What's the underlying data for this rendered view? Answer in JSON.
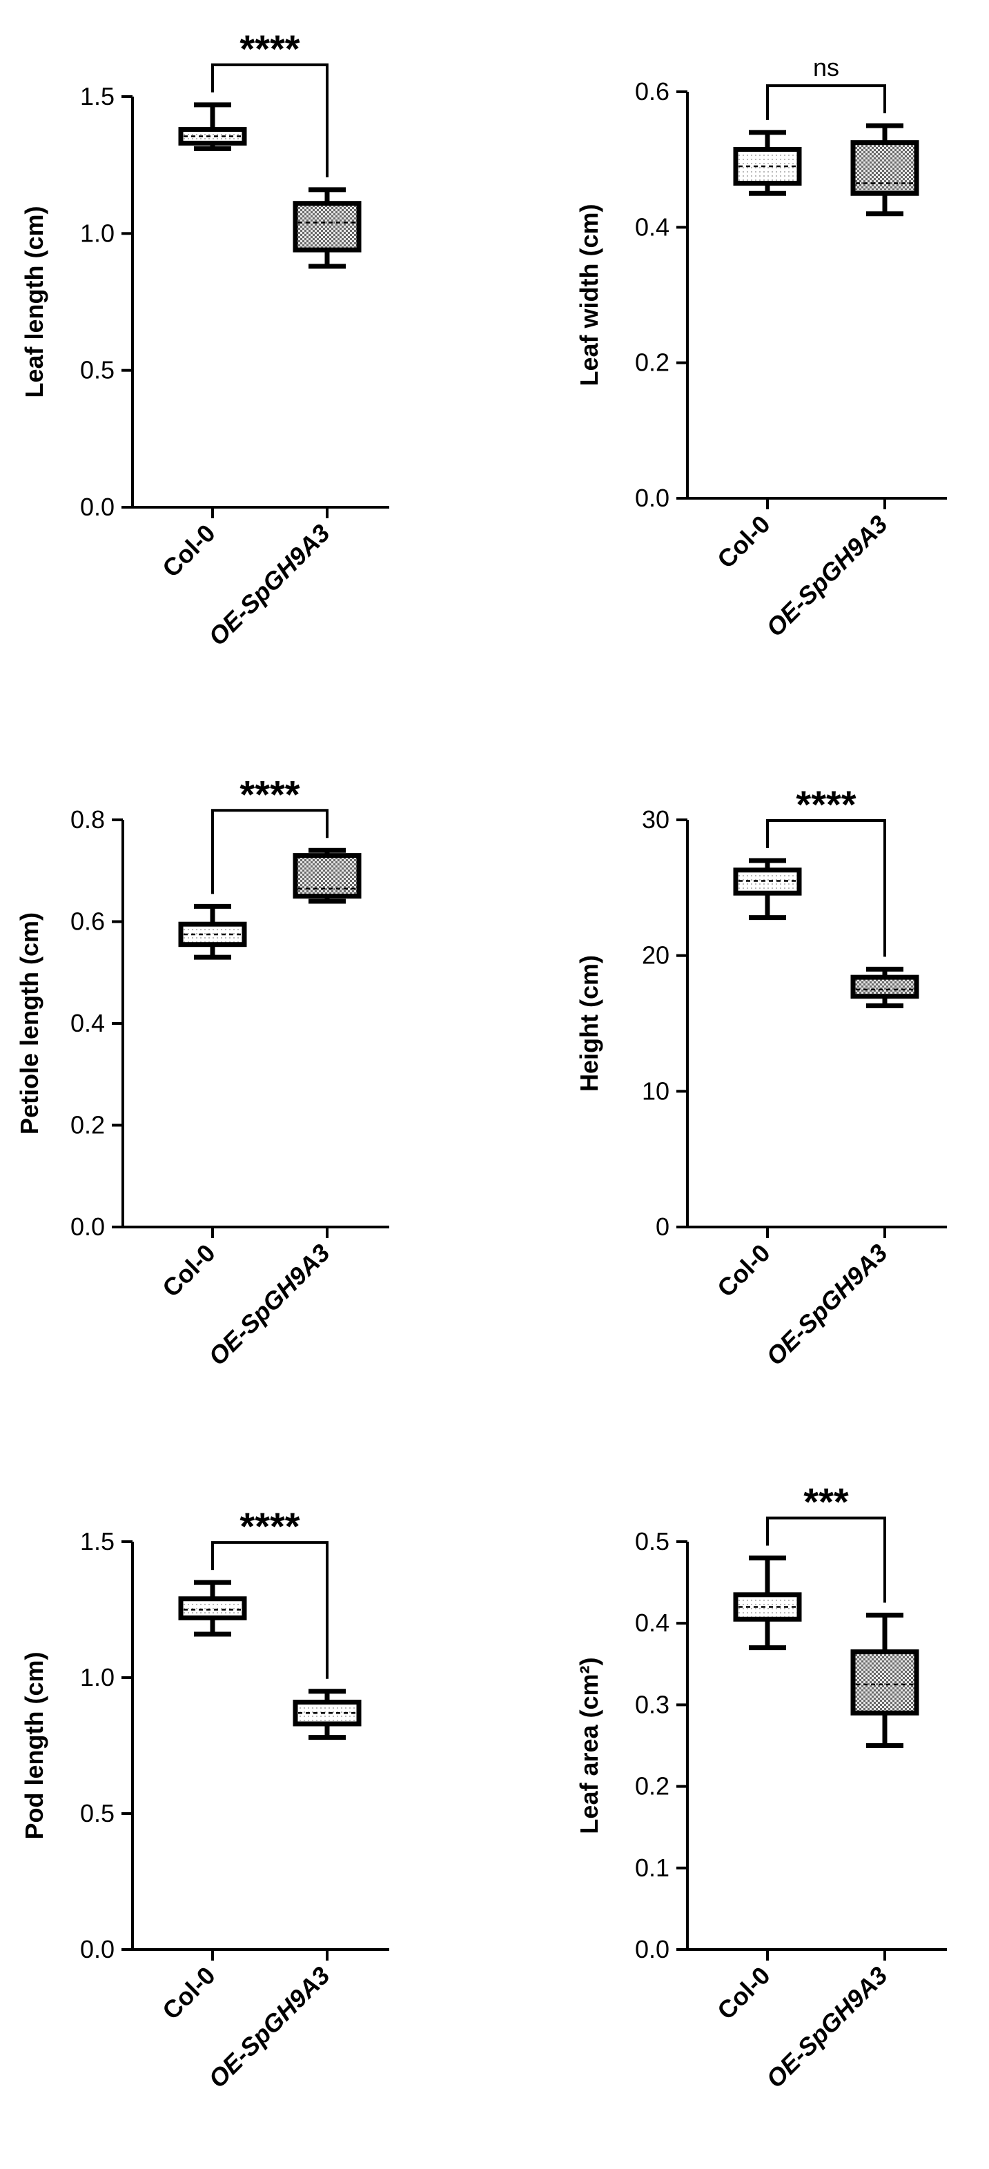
{
  "colors": {
    "ink": "#000000",
    "background": "#ffffff",
    "dots_fill": "#ffffff",
    "checker_fill": "#c8c8c8"
  },
  "chart_data": [
    {
      "type": "box",
      "ylabel": "Leaf length (cm)",
      "ylim": [
        0,
        1.5
      ],
      "yticks": [
        "0.0",
        "0.5",
        "1.0",
        "1.5"
      ],
      "ytick_values": [
        0,
        0.5,
        1.0,
        1.5
      ],
      "categories": [
        "Col-0",
        "OE-SpGH9A3"
      ],
      "boxes": [
        {
          "category": "Col-0",
          "min": 1.31,
          "q1": 1.33,
          "median": 1.355,
          "q3": 1.38,
          "max": 1.47,
          "pattern": "dots"
        },
        {
          "category": "OE-SpGH9A3",
          "min": 0.88,
          "q1": 0.94,
          "median": 1.04,
          "q3": 1.11,
          "max": 1.16,
          "pattern": "checker"
        }
      ],
      "significance": "****"
    },
    {
      "type": "box",
      "ylabel": "Leaf width (cm)",
      "ylim": [
        0,
        0.6
      ],
      "yticks": [
        "0.0",
        "0.2",
        "0.4",
        "0.6"
      ],
      "ytick_values": [
        0,
        0.2,
        0.4,
        0.6
      ],
      "categories": [
        "Col-0",
        "OE-SpGH9A3"
      ],
      "boxes": [
        {
          "category": "Col-0",
          "min": 0.45,
          "q1": 0.465,
          "median": 0.49,
          "q3": 0.515,
          "max": 0.54,
          "pattern": "dots"
        },
        {
          "category": "OE-SpGH9A3",
          "min": 0.42,
          "q1": 0.45,
          "median": 0.465,
          "q3": 0.525,
          "max": 0.55,
          "pattern": "checker"
        }
      ],
      "significance": "ns"
    },
    {
      "type": "box",
      "ylabel": "Petiole length (cm)",
      "ylim": [
        0,
        0.8
      ],
      "yticks": [
        "0.0",
        "0.2",
        "0.4",
        "0.6",
        "0.8"
      ],
      "ytick_values": [
        0,
        0.2,
        0.4,
        0.6,
        0.8
      ],
      "categories": [
        "Col-0",
        "OE-SpGH9A3"
      ],
      "boxes": [
        {
          "category": "Col-0",
          "min": 0.53,
          "q1": 0.555,
          "median": 0.575,
          "q3": 0.595,
          "max": 0.63,
          "pattern": "dots"
        },
        {
          "category": "OE-SpGH9A3",
          "min": 0.64,
          "q1": 0.65,
          "median": 0.665,
          "q3": 0.73,
          "max": 0.74,
          "pattern": "checker"
        }
      ],
      "significance": "****"
    },
    {
      "type": "box",
      "ylabel": "Height (cm)",
      "ylim": [
        0,
        30
      ],
      "yticks": [
        "0",
        "10",
        "20",
        "30"
      ],
      "ytick_values": [
        0,
        10,
        20,
        30
      ],
      "categories": [
        "Col-0",
        "OE-SpGH9A3"
      ],
      "boxes": [
        {
          "category": "Col-0",
          "min": 22.8,
          "q1": 24.6,
          "median": 25.5,
          "q3": 26.3,
          "max": 27.0,
          "pattern": "dots"
        },
        {
          "category": "OE-SpGH9A3",
          "min": 16.3,
          "q1": 17.0,
          "median": 17.5,
          "q3": 18.4,
          "max": 19.0,
          "pattern": "checker"
        }
      ],
      "significance": "****"
    },
    {
      "type": "box",
      "ylabel": "Pod length (cm)",
      "ylim": [
        0,
        1.5
      ],
      "yticks": [
        "0.0",
        "0.5",
        "1.0",
        "1.5"
      ],
      "ytick_values": [
        0,
        0.5,
        1.0,
        1.5
      ],
      "categories": [
        "Col-0",
        "OE-SpGH9A3"
      ],
      "boxes": [
        {
          "category": "Col-0",
          "min": 1.16,
          "q1": 1.22,
          "median": 1.25,
          "q3": 1.29,
          "max": 1.35,
          "pattern": "dots"
        },
        {
          "category": "OE-SpGH9A3",
          "min": 0.78,
          "q1": 0.83,
          "median": 0.87,
          "q3": 0.91,
          "max": 0.95,
          "pattern": "dots"
        }
      ],
      "significance": "****"
    },
    {
      "type": "box",
      "ylabel": "Leaf area (cm²)",
      "ylim": [
        0,
        0.5
      ],
      "yticks": [
        "0.0",
        "0.1",
        "0.2",
        "0.3",
        "0.4",
        "0.5"
      ],
      "ytick_values": [
        0,
        0.1,
        0.2,
        0.3,
        0.4,
        0.5
      ],
      "categories": [
        "Col-0",
        "OE-SpGH9A3"
      ],
      "boxes": [
        {
          "category": "Col-0",
          "min": 0.37,
          "q1": 0.405,
          "median": 0.42,
          "q3": 0.435,
          "max": 0.48,
          "pattern": "dots"
        },
        {
          "category": "OE-SpGH9A3",
          "min": 0.25,
          "q1": 0.29,
          "median": 0.325,
          "q3": 0.365,
          "max": 0.41,
          "pattern": "checker"
        }
      ],
      "significance": "***"
    }
  ]
}
